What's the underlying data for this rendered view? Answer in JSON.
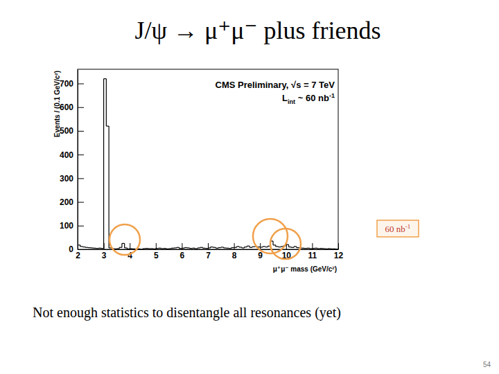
{
  "slide": {
    "title": "J/ψ → μ⁺μ⁻ plus friends",
    "caption": "Not enough statistics to disentangle all resonances (yet)",
    "page": 54
  },
  "chart_data": {
    "type": "histogram",
    "title": "CMS Preliminary, √s = 7 TeV",
    "subtitle": {
      "base": "L",
      "sub": "int",
      "text": " ~ 60 nb",
      "sup": "-1"
    },
    "xlabel": "μ⁺μ⁻ mass (GeV/c²)",
    "ylabel": "Events / (0.1 GeV/c²)",
    "annotations": [
      {
        "base": "60 nb",
        "sup": "-1"
      }
    ],
    "color": "#000000",
    "grid": false,
    "xlim": [
      2,
      12
    ],
    "ylim": [
      0,
      760
    ],
    "xticks": [
      2,
      3,
      4,
      5,
      6,
      7,
      8,
      9,
      10,
      11,
      12
    ],
    "yticks": [
      0,
      100,
      200,
      300,
      400,
      500,
      600,
      700
    ],
    "bins": [
      2,
      2.1,
      2.2,
      2.3,
      2.4,
      2.5,
      2.6,
      2.7,
      2.8,
      2.9,
      3,
      3.1,
      3.2,
      3.3,
      3.4,
      3.5,
      3.6,
      3.7,
      3.8,
      3.9,
      4,
      4.1,
      4.2,
      4.3,
      4.4,
      4.5,
      4.6,
      4.7,
      4.8,
      4.9,
      5,
      5.1,
      5.2,
      5.3,
      5.4,
      5.5,
      5.6,
      5.7,
      5.8,
      5.9,
      6,
      6.1,
      6.2,
      6.3,
      6.4,
      6.5,
      6.6,
      6.7,
      6.8,
      6.9,
      7,
      7.1,
      7.2,
      7.3,
      7.4,
      7.5,
      7.6,
      7.7,
      7.8,
      7.9,
      8,
      8.1,
      8.2,
      8.3,
      8.4,
      8.5,
      8.6,
      8.7,
      8.8,
      8.9,
      9,
      9.1,
      9.2,
      9.3,
      9.4,
      9.5,
      9.6,
      9.7,
      9.8,
      9.9,
      10,
      10.1,
      10.2,
      10.3,
      10.4,
      10.5,
      10.6,
      10.7,
      10.8,
      10.9,
      11,
      11.1,
      11.2,
      11.3,
      11.4,
      11.5,
      11.6,
      11.7,
      11.8,
      11.9,
      12
    ],
    "counts": [
      18,
      12,
      10,
      8,
      7,
      6,
      5,
      4,
      5,
      4,
      720,
      520,
      6,
      3,
      2,
      3,
      8,
      25,
      6,
      2,
      3,
      2,
      1,
      2,
      0,
      3,
      4,
      3,
      3,
      2,
      4,
      5,
      3,
      4,
      2,
      3,
      5,
      6,
      8,
      4,
      5,
      7,
      6,
      4,
      5,
      3,
      6,
      8,
      5,
      4,
      6,
      10,
      8,
      5,
      7,
      9,
      6,
      5,
      4,
      7,
      8,
      12,
      9,
      6,
      10,
      14,
      8,
      11,
      12,
      10,
      9,
      12,
      10,
      14,
      35,
      18,
      12,
      10,
      12,
      15,
      20,
      10,
      8,
      12,
      7,
      6,
      5,
      4,
      5,
      3,
      4,
      5,
      3,
      4,
      3,
      2,
      3,
      2,
      2,
      1
    ]
  }
}
